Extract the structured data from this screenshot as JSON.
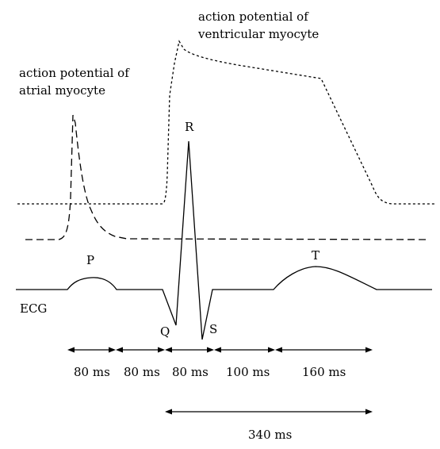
{
  "labels": {
    "ventricular_line1": "action potential of",
    "ventricular_line2": "ventricular myocyte",
    "atrial_line1": "action potential of",
    "atrial_line2": "atrial myocyte",
    "ecg": "ECG",
    "wave_p": "P",
    "wave_q": "Q",
    "wave_r": "R",
    "wave_s": "S",
    "wave_t": "T"
  },
  "intervals": [
    {
      "name": "p-wave-duration",
      "label": "80 ms"
    },
    {
      "name": "pr-segment",
      "label": "80 ms"
    },
    {
      "name": "qrs-duration",
      "label": "80 ms"
    },
    {
      "name": "st-segment",
      "label": "100 ms"
    },
    {
      "name": "t-wave-duration",
      "label": "160 ms"
    }
  ],
  "qt_interval": {
    "label": "340 ms"
  },
  "traces": [
    {
      "name": "ventricular-action-potential",
      "style": "short-dash"
    },
    {
      "name": "atrial-action-potential",
      "style": "long-dash"
    },
    {
      "name": "ecg-trace",
      "style": "solid"
    }
  ]
}
